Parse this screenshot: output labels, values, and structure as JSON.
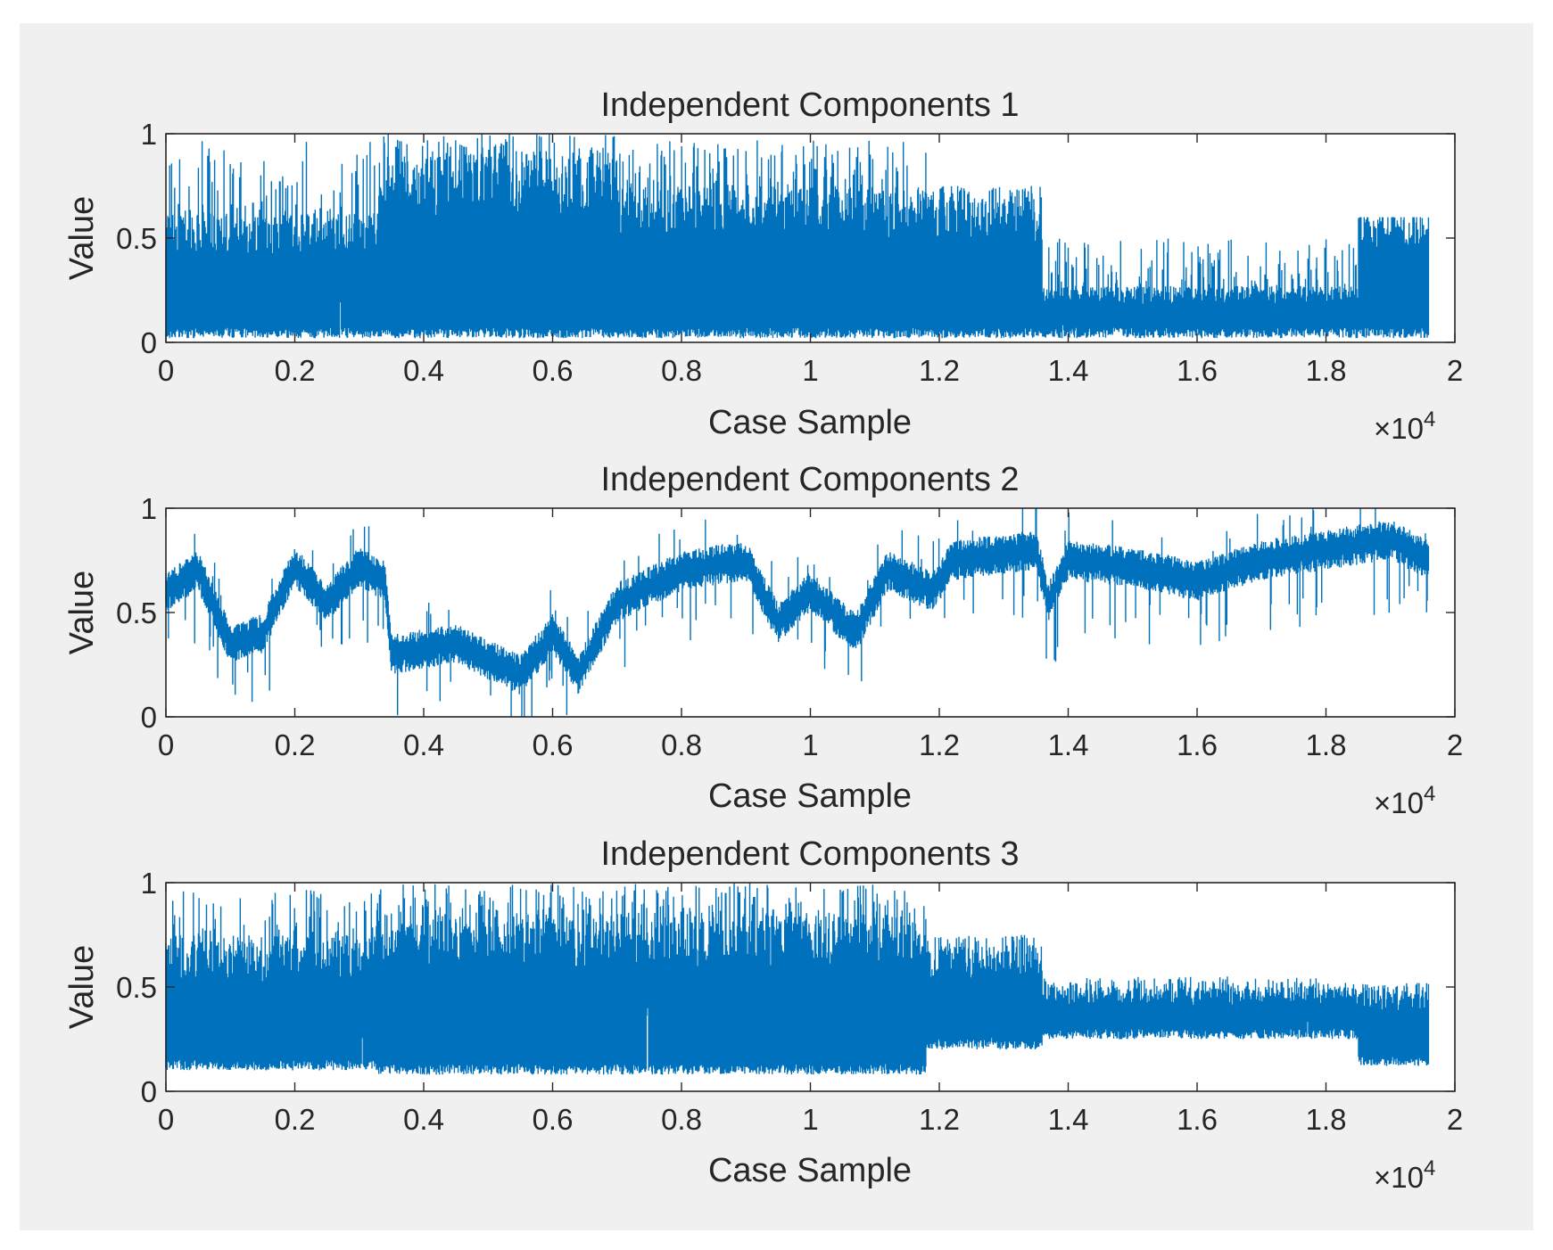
{
  "figure": {
    "background_color": "#f0f0f0",
    "axes_color": "#ffffff",
    "line_color": "#0072bd"
  },
  "chart_data": [
    {
      "type": "line",
      "title": "Independent Components 1",
      "xlabel": "Case Sample",
      "ylabel": "Value",
      "x_exponent": "×10",
      "x_exponent_power": "4",
      "xlim": [
        0,
        20000
      ],
      "ylim": [
        0,
        1
      ],
      "xticks": [
        0,
        2000,
        4000,
        6000,
        8000,
        10000,
        12000,
        14000,
        16000,
        18000,
        20000
      ],
      "xtick_labels": [
        "0",
        "0.2",
        "0.4",
        "0.6",
        "0.8",
        "1",
        "1.2",
        "1.4",
        "1.6",
        "1.8",
        "2"
      ],
      "yticks": [
        0,
        0.5,
        1
      ],
      "ytick_labels": [
        "0",
        "0.5",
        "1"
      ],
      "grid": false,
      "n_samples": 19600,
      "seed": 17,
      "segments": [
        {
          "x0": 0,
          "x1": 3300,
          "low": 0.02,
          "high": 0.62,
          "spike_max": 0.97
        },
        {
          "x0": 3300,
          "x1": 7000,
          "low": 0.02,
          "high": 0.9,
          "spike_max": 1.0
        },
        {
          "x0": 7000,
          "x1": 11900,
          "low": 0.02,
          "high": 0.75,
          "spike_max": 0.97
        },
        {
          "x0": 11900,
          "x1": 13600,
          "low": 0.02,
          "high": 0.72,
          "spike_max": 0.75
        },
        {
          "x0": 13600,
          "x1": 18500,
          "low": 0.02,
          "high": 0.27,
          "spike_max": 0.5
        },
        {
          "x0": 18500,
          "x1": 19600,
          "low": 0.02,
          "high": 0.6,
          "spike_max": 0.6
        }
      ]
    },
    {
      "type": "line",
      "title": "Independent Components 2",
      "xlabel": "Case Sample",
      "ylabel": "Value",
      "x_exponent": "×10",
      "x_exponent_power": "4",
      "xlim": [
        0,
        20000
      ],
      "ylim": [
        0,
        1
      ],
      "xticks": [
        0,
        2000,
        4000,
        6000,
        8000,
        10000,
        12000,
        14000,
        16000,
        18000,
        20000
      ],
      "xtick_labels": [
        "0",
        "0.2",
        "0.4",
        "0.6",
        "0.8",
        "1",
        "1.2",
        "1.4",
        "1.6",
        "1.8",
        "2"
      ],
      "yticks": [
        0,
        0.5,
        1
      ],
      "ytick_labels": [
        "0",
        "0.5",
        "1"
      ],
      "grid": false,
      "n_samples": 19600,
      "seed": 29,
      "noise": 0.08,
      "trend": [
        {
          "x": 0,
          "y": 0.6
        },
        {
          "x": 500,
          "y": 0.7
        },
        {
          "x": 1000,
          "y": 0.35
        },
        {
          "x": 1500,
          "y": 0.4
        },
        {
          "x": 2000,
          "y": 0.72
        },
        {
          "x": 2500,
          "y": 0.55
        },
        {
          "x": 3000,
          "y": 0.72
        },
        {
          "x": 3400,
          "y": 0.65
        },
        {
          "x": 3500,
          "y": 0.3
        },
        {
          "x": 4500,
          "y": 0.35
        },
        {
          "x": 5500,
          "y": 0.2
        },
        {
          "x": 6000,
          "y": 0.4
        },
        {
          "x": 6400,
          "y": 0.2
        },
        {
          "x": 7000,
          "y": 0.55
        },
        {
          "x": 8000,
          "y": 0.7
        },
        {
          "x": 9000,
          "y": 0.75
        },
        {
          "x": 9500,
          "y": 0.45
        },
        {
          "x": 10000,
          "y": 0.6
        },
        {
          "x": 10700,
          "y": 0.4
        },
        {
          "x": 11200,
          "y": 0.7
        },
        {
          "x": 11900,
          "y": 0.6
        },
        {
          "x": 12200,
          "y": 0.75
        },
        {
          "x": 13500,
          "y": 0.8
        },
        {
          "x": 13700,
          "y": 0.55
        },
        {
          "x": 14000,
          "y": 0.75
        },
        {
          "x": 15000,
          "y": 0.72
        },
        {
          "x": 16000,
          "y": 0.65
        },
        {
          "x": 17000,
          "y": 0.75
        },
        {
          "x": 18000,
          "y": 0.8
        },
        {
          "x": 19000,
          "y": 0.85
        },
        {
          "x": 19600,
          "y": 0.75
        }
      ]
    },
    {
      "type": "line",
      "title": "Independent Components 3",
      "xlabel": "Case Sample",
      "ylabel": "Value",
      "x_exponent": "×10",
      "x_exponent_power": "4",
      "xlim": [
        0,
        20000
      ],
      "ylim": [
        0,
        1
      ],
      "xticks": [
        0,
        2000,
        4000,
        6000,
        8000,
        10000,
        12000,
        14000,
        16000,
        18000,
        20000
      ],
      "xtick_labels": [
        "0",
        "0.2",
        "0.4",
        "0.6",
        "0.8",
        "1",
        "1.2",
        "1.4",
        "1.6",
        "1.8",
        "2"
      ],
      "yticks": [
        0,
        0.5,
        1
      ],
      "ytick_labels": [
        "0",
        "0.5",
        "1"
      ],
      "grid": false,
      "n_samples": 19600,
      "seed": 43,
      "segments": [
        {
          "x0": 0,
          "x1": 3300,
          "low": 0.1,
          "high": 0.75,
          "spike_max": 0.97
        },
        {
          "x0": 3300,
          "x1": 11800,
          "low": 0.08,
          "high": 0.85,
          "spike_max": 1.0
        },
        {
          "x0": 11800,
          "x1": 13600,
          "low": 0.2,
          "high": 0.7,
          "spike_max": 0.75
        },
        {
          "x0": 13600,
          "x1": 18500,
          "low": 0.25,
          "high": 0.5,
          "spike_max": 0.55
        },
        {
          "x0": 18500,
          "x1": 19600,
          "low": 0.12,
          "high": 0.5,
          "spike_max": 0.52
        }
      ]
    }
  ]
}
